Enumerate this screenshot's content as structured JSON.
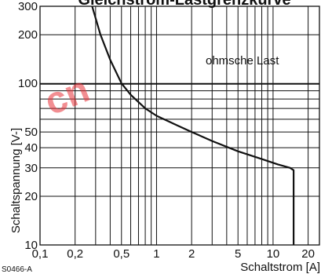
{
  "chart_data": {
    "type": "line",
    "title": "Gleichstrom-Lastgrenzkurve",
    "xlabel": "Schaltstrom [A]",
    "ylabel": "Schaltspannung [V-]",
    "x_scale": "log",
    "y_scale": "log",
    "xlim": [
      0.1,
      25
    ],
    "ylim": [
      10,
      300
    ],
    "x_ticks": [
      0.1,
      0.2,
      0.5,
      1,
      2,
      5,
      10,
      20
    ],
    "x_tick_labels": [
      "0,1",
      "0,2",
      "0,5",
      "1",
      "2",
      "5",
      "10",
      "20"
    ],
    "y_ticks": [
      10,
      20,
      30,
      40,
      50,
      100,
      200,
      300
    ],
    "y_tick_labels": [
      "10",
      "20",
      "30",
      "40",
      "50",
      "100",
      "200",
      "300"
    ],
    "grid": true,
    "series": [
      {
        "name": "",
        "x": [
          0.28,
          0.33,
          0.4,
          0.5,
          0.6,
          0.8,
          1.0,
          1.5,
          2.0,
          3.0,
          5.0,
          8.0,
          11.0,
          14.0,
          15.0,
          15.0
        ],
        "y": [
          300,
          200,
          140,
          100,
          85,
          70,
          63,
          55,
          50,
          44,
          38,
          34,
          31.5,
          30,
          29,
          10
        ]
      }
    ],
    "annotations": [
      {
        "text": "ohmsche Last"
      }
    ]
  },
  "figure_id": "S0466-A",
  "watermark": "cn"
}
